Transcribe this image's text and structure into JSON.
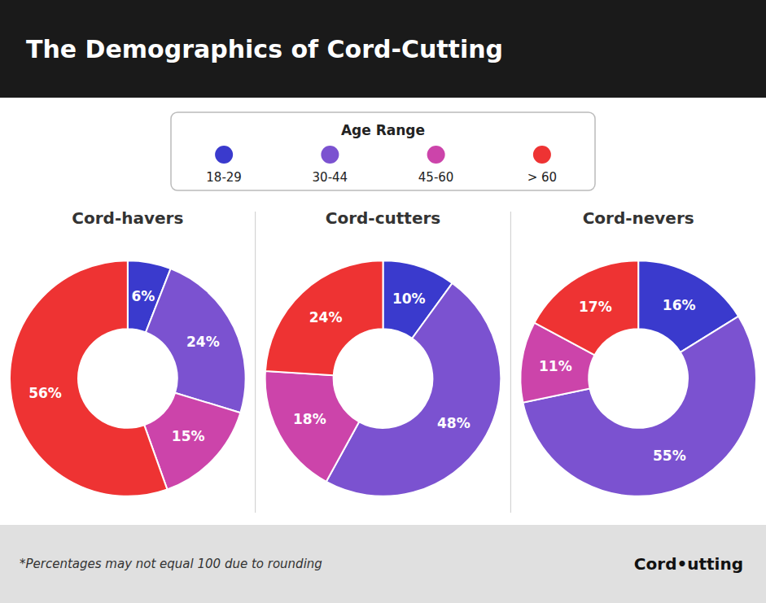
{
  "title": "The Demographics of Cord-Cutting",
  "legend_title": "Age Range",
  "annotations": [
    "*Percentages may not equal 100 due to rounding",
    "Cord•utting"
  ],
  "chart_data": [
    {
      "type": "pie",
      "title": "Cord-havers",
      "categories": [
        "18-29",
        "30-44",
        "45-60",
        "> 60"
      ],
      "values": [
        6,
        24,
        15,
        56
      ],
      "value_labels": [
        "6%",
        "24%",
        "15%",
        "56%"
      ],
      "colors": [
        "#3a3acd",
        "#7b52d0",
        "#cc44aa",
        "#ee3333"
      ],
      "data_labels": true,
      "legend": "top"
    },
    {
      "type": "pie",
      "title": "Cord-cutters",
      "categories": [
        "18-29",
        "30-44",
        "45-60",
        "> 60"
      ],
      "values": [
        10,
        48,
        18,
        24
      ],
      "value_labels": [
        "10%",
        "48%",
        "18%",
        "24%"
      ],
      "colors": [
        "#3a3acd",
        "#7b52d0",
        "#cc44aa",
        "#ee3333"
      ],
      "data_labels": true,
      "legend": "top"
    },
    {
      "type": "pie",
      "title": "Cord-nevers",
      "categories": [
        "18-29",
        "30-44",
        "45-60",
        "> 60"
      ],
      "values": [
        16,
        55,
        11,
        17
      ],
      "value_labels": [
        "16%",
        "55%",
        "11%",
        "17%"
      ],
      "colors": [
        "#3a3acd",
        "#7b52d0",
        "#cc44aa",
        "#ee3333"
      ],
      "data_labels": true,
      "legend": "top"
    }
  ]
}
